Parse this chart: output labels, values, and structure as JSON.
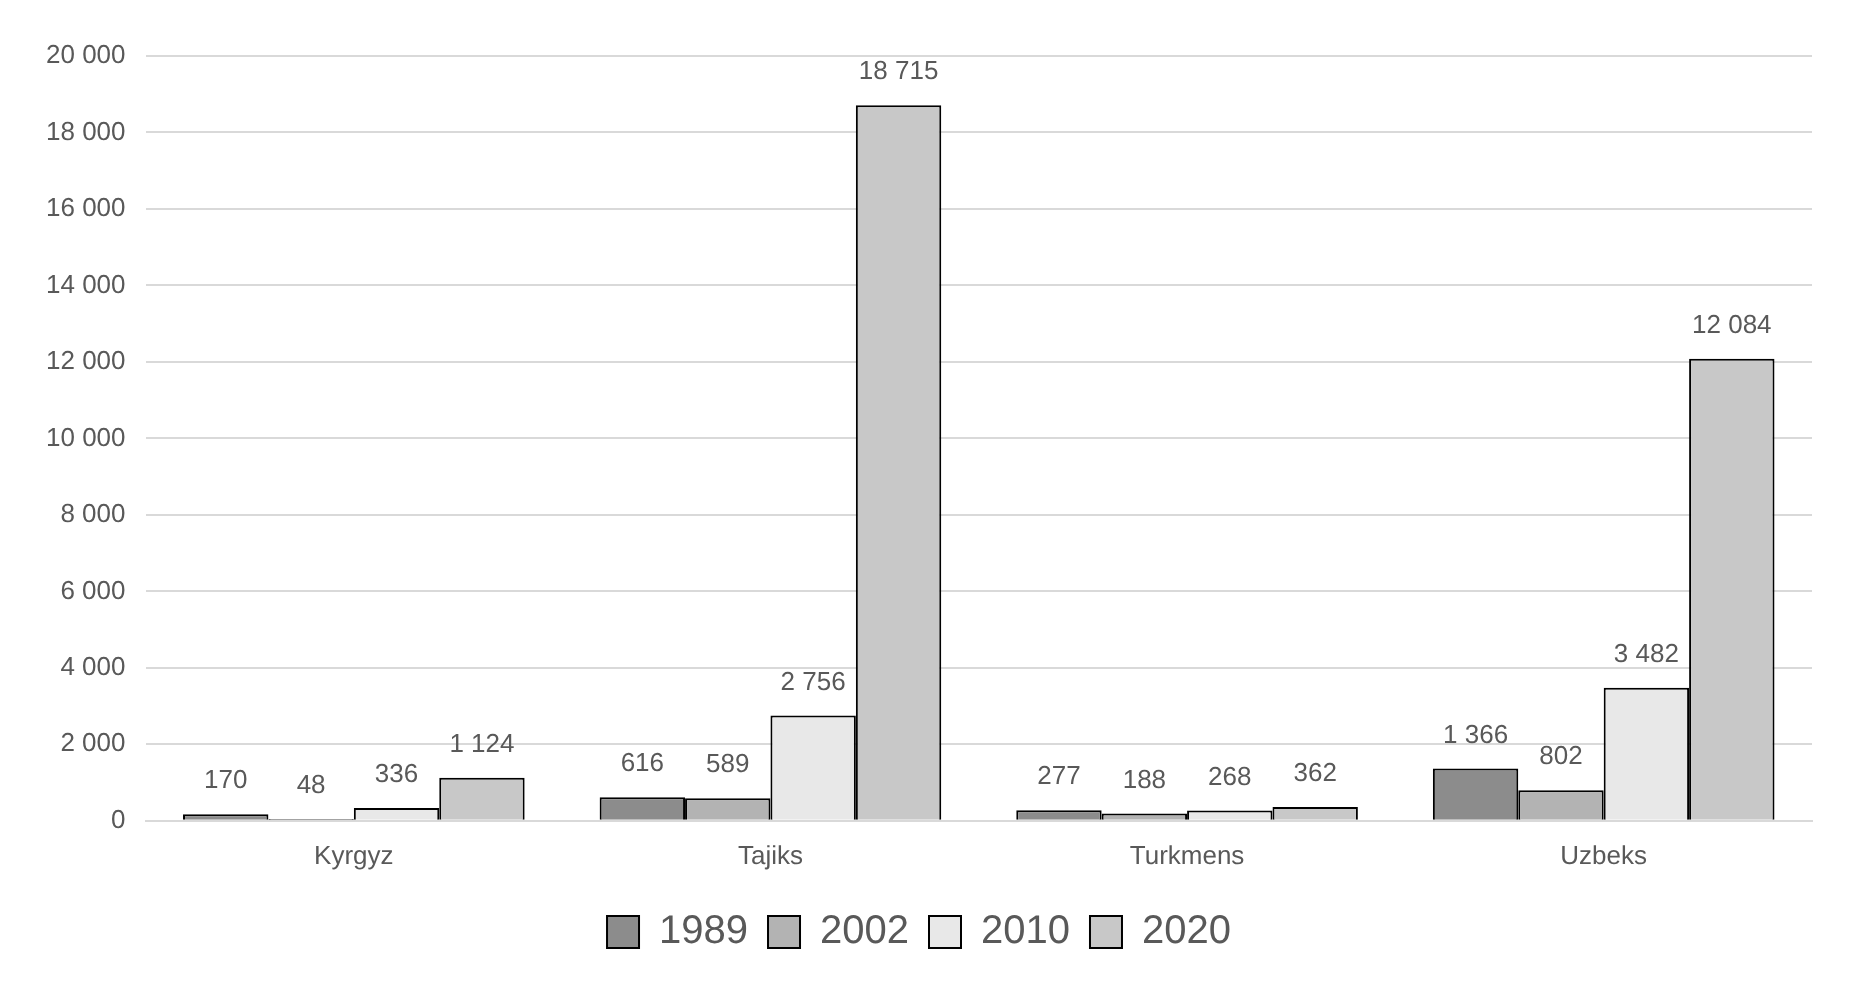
{
  "chart_data": {
    "type": "bar",
    "categories": [
      "Kyrgyz",
      "Tajiks",
      "Turkmens",
      "Uzbeks"
    ],
    "series": [
      {
        "name": "1989",
        "color": "#8c8c8c",
        "values": [
          170,
          616,
          277,
          1366
        ],
        "value_labels": [
          "170",
          "616",
          "277",
          "1 366"
        ]
      },
      {
        "name": "2002",
        "color": "#b3b3b3",
        "values": [
          48,
          589,
          188,
          802
        ],
        "value_labels": [
          "48",
          "589",
          "188",
          "802"
        ]
      },
      {
        "name": "2010",
        "color": "#e8e8e8",
        "values": [
          336,
          2756,
          268,
          3482
        ],
        "value_labels": [
          "336",
          "2 756",
          "268",
          "3 482"
        ]
      },
      {
        "name": "2020",
        "color": "#c8c8c8",
        "values": [
          1124,
          18715,
          362,
          12084
        ],
        "value_labels": [
          "1 124",
          "18 715",
          "362",
          "12 084"
        ]
      }
    ],
    "ylim": [
      0,
      20000
    ],
    "yticks": [
      {
        "value": 0,
        "label": "0"
      },
      {
        "value": 2000,
        "label": "2 000"
      },
      {
        "value": 4000,
        "label": "4 000"
      },
      {
        "value": 6000,
        "label": "6 000"
      },
      {
        "value": 8000,
        "label": "8 000"
      },
      {
        "value": 10000,
        "label": "10 000"
      },
      {
        "value": 12000,
        "label": "12 000"
      },
      {
        "value": 14000,
        "label": "14 000"
      },
      {
        "value": 16000,
        "label": "16 000"
      },
      {
        "value": 18000,
        "label": "18 000"
      },
      {
        "value": 20000,
        "label": "20 000"
      }
    ],
    "grid": "y",
    "legend": "bottom"
  }
}
